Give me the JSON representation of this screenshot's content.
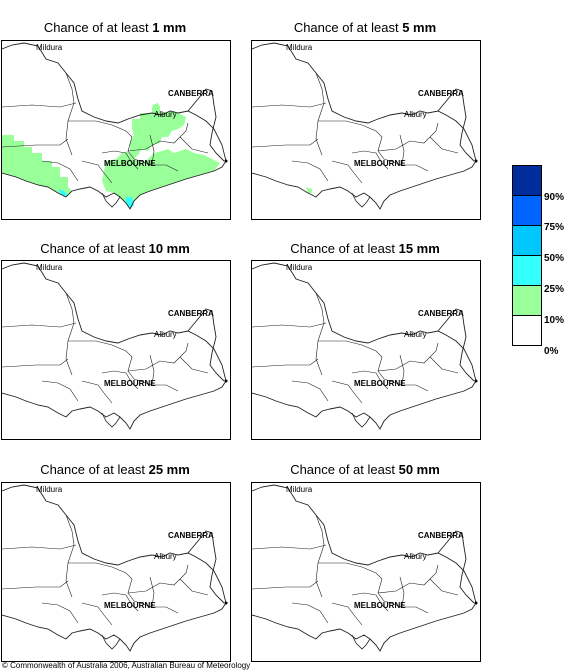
{
  "panels": [
    {
      "title_prefix": "Chance of at least ",
      "title_amount": "1 mm"
    },
    {
      "title_prefix": "Chance of at least ",
      "title_amount": "5 mm"
    },
    {
      "title_prefix": "Chance of at least ",
      "title_amount": "10 mm"
    },
    {
      "title_prefix": "Chance of at least ",
      "title_amount": "15 mm"
    },
    {
      "title_prefix": "Chance of at least ",
      "title_amount": "25 mm"
    },
    {
      "title_prefix": "Chance of at least ",
      "title_amount": "50 mm"
    }
  ],
  "places": {
    "mildura": "Mildura",
    "canberra": "CANBERRA",
    "albury": "Albury",
    "melbourne": "MELBOURNE"
  },
  "legend": {
    "colors": [
      "#002c9c",
      "#0064ff",
      "#00c8ff",
      "#33ffff",
      "#99ff99",
      "#ffffff"
    ],
    "labels": [
      "90%",
      "75%",
      "50%",
      "25%",
      "10%",
      "0%"
    ]
  },
  "copyright": "© Commonwealth of Australia 2006, Australian Bureau of Meteorology"
}
